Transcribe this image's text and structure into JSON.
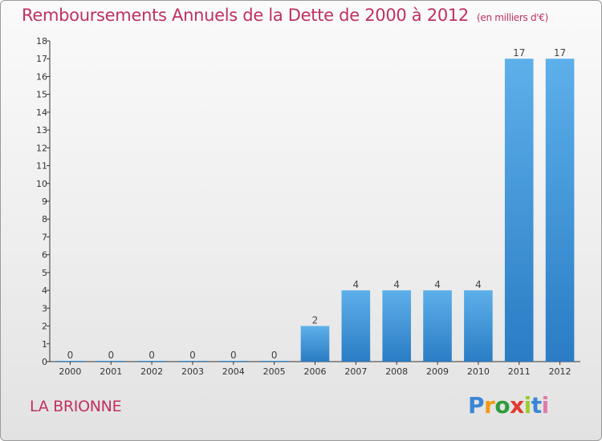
{
  "title": "Remboursements Annuels de la Dette de 2000 à 2012",
  "unit_note": "(en milliers d'€)",
  "commune": "LA BRIONNE",
  "logo": {
    "letters": [
      "P",
      "r",
      "o",
      "x",
      "i",
      "t",
      "i"
    ],
    "colors": [
      "#3a86d6",
      "#f29a16",
      "#2e9c3a",
      "#e03a2e",
      "#9ccc2e",
      "#3a86d6",
      "#e07aa8"
    ]
  },
  "chart_data": {
    "type": "bar",
    "title": "Remboursements Annuels de la Dette de 2000 à 2012",
    "categories": [
      "2000",
      "2001",
      "2002",
      "2003",
      "2004",
      "2005",
      "2006",
      "2007",
      "2008",
      "2009",
      "2010",
      "2011",
      "2012"
    ],
    "values": [
      0,
      0,
      0,
      0,
      0,
      0,
      2,
      4,
      4,
      4,
      4,
      17,
      17
    ],
    "data_labels": [
      "0",
      "0",
      "0",
      "0",
      "0",
      "0",
      "2",
      "4",
      "4",
      "4",
      "4",
      "17",
      "17"
    ],
    "y_ticks": [
      "0",
      "1",
      "2",
      "3",
      "4",
      "5",
      "6",
      "7",
      "8",
      "9",
      "10",
      "11",
      "12",
      "13",
      "14",
      "15",
      "16",
      "17",
      "18"
    ],
    "ylim": [
      0,
      18
    ],
    "grid": false,
    "legend": "none",
    "bar_color": "#3b94da"
  }
}
